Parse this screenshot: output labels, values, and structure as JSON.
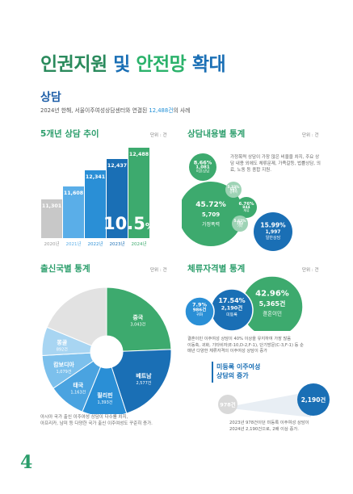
{
  "header": {
    "title_part1": "인권지원",
    "title_part2": "및",
    "title_part3": "안전망",
    "title_part4": "확대",
    "section_title": "상담",
    "subtitle_prefix": "2024년 한해, 서울이주여성상담센터와 연결된 ",
    "subtitle_highlight": "12,488건",
    "subtitle_suffix": "의 사례"
  },
  "panel1": {
    "title": "5개년 상담 추이",
    "unit": "단위 : 건",
    "growth_value": "10.5",
    "growth_unit": "%",
    "growth_arrow": "↑"
  },
  "panel2": {
    "title": "상담내용별 통계",
    "unit": "단위 : 건",
    "note": "가정폭력 상담이 가장 많은 비율을 차지, 주요 상담 내용 외에도 체류문제, 가족갈등, 법률상담, 의료, 노동 등 종합 지원."
  },
  "panel3": {
    "title": "출신국별 통계",
    "unit": "단위 : 건",
    "note_line1": "아시아 국가 출신 이주여성 상담이 다수를 차지,",
    "note_line2": "아프리카, 남미 등 다양한 국가 출신 이주여성도 꾸준히 증가."
  },
  "panel4": {
    "title": "체류자격별 통계",
    "unit": "단위 : 건",
    "note_line1": "결혼이민 이주여성 상담이 40% 이상을 유지하여 가장 많음",
    "note_line2": "이동축, 귀화, 기타비자(E-10,D-2,F-1), 단기방문(C-3,F-1) 등 순",
    "note_line3": "매년 다양한 체류자격의 이주여성 상담이 증가",
    "undocumented_title": "미등록 이주여성",
    "undocumented_sub": "상담의 증가",
    "undocumented_from": "978건",
    "undocumented_to": "2,190건",
    "undocumented_note1": "2023년 978건이던 미등록 이주여성 상담이",
    "undocumented_note2": "2024년 2,190건으로, 2배 이상 증가."
  },
  "page_number": "4",
  "chart_data": [
    {
      "type": "bar",
      "title": "5개년 상담 추이",
      "categories": [
        "2020년",
        "2021년",
        "2022년",
        "2023년",
        "2024년"
      ],
      "values": [
        11301,
        11608,
        12341,
        12437,
        12488
      ],
      "value_labels": [
        "11,301",
        "11,608",
        "12,341",
        "12,437",
        "12,488"
      ],
      "colors": [
        "#c8c8c8",
        "#5aaee8",
        "#2a8fd6",
        "#1a6fb5",
        "#3daa6e"
      ],
      "annotation": "10.5%↑"
    },
    {
      "type": "bubble",
      "title": "상담내용별 통계",
      "items": [
        {
          "label": "가정폭력",
          "percent": "45.72%",
          "value": "5,709",
          "color": "#3daa6e"
        },
        {
          "label": "이혼상담",
          "percent": "8.66%",
          "value": "1,081",
          "color": "#3daa6e"
        },
        {
          "label": "성폭력",
          "percent": "5.33%",
          "value": "665",
          "color": "#9ed3b5"
        },
        {
          "label": "체류",
          "percent": "6.76%",
          "value": "844",
          "color": "#3daa6e"
        },
        {
          "label": "기타",
          "percent": "5.62%",
          "value": "702",
          "color": "#9ed3b5"
        },
        {
          "label": "일반상담",
          "percent": "15.99%",
          "value": "1,997",
          "color": "#1a6fb5"
        }
      ]
    },
    {
      "type": "pie",
      "title": "출신국별 통계",
      "slices": [
        {
          "label": "중국",
          "value": 3043,
          "value_label": "3,043건",
          "color": "#3daa6e"
        },
        {
          "label": "베트남",
          "value": 2577,
          "value_label": "2,577건",
          "color": "#1a6fb5"
        },
        {
          "label": "필리핀",
          "value": 1393,
          "value_label": "1,393건",
          "color": "#2a8fd6"
        },
        {
          "label": "태국",
          "value": 1163,
          "value_label": "1,163건",
          "color": "#4aa3e0"
        },
        {
          "label": "캄보디아",
          "value": 1079,
          "value_label": "1,079건",
          "color": "#7cc0ec"
        },
        {
          "label": "몽골",
          "value": 892,
          "value_label": "892건",
          "color": "#a8d5f2"
        },
        {
          "label": "",
          "value": 2341,
          "value_label": "",
          "color": "#e2e2e2"
        }
      ]
    },
    {
      "type": "pie",
      "title": "체류자격별 통계",
      "slices": [
        {
          "label": "결혼이민",
          "percent": "42.96%",
          "value": "5,365건",
          "color": "#3daa6e"
        },
        {
          "label": "미등록",
          "percent": "17.54%",
          "value": "2,190건",
          "color": "#1a6fb5"
        },
        {
          "label": "귀화",
          "percent": "7.9%",
          "value": "986건",
          "color": "#2a8fd6"
        }
      ]
    }
  ]
}
